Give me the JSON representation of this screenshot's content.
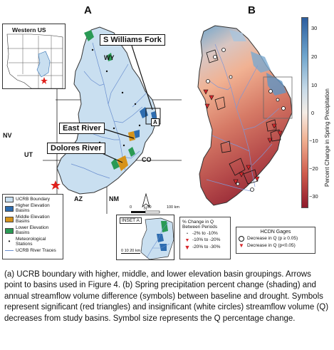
{
  "panel_a": {
    "letter": "A",
    "inset_title": "Western US",
    "callouts": {
      "williams": "S Williams Fork",
      "east": "East River",
      "dolores": "Dolores River",
      "box_label": "A"
    },
    "states": {
      "wy": "WY",
      "ut": "UT",
      "co": "CO",
      "nv": "NV",
      "az": "AZ",
      "nm": "NM"
    },
    "scale": {
      "ticks": [
        "0",
        "50",
        "100 km"
      ]
    },
    "north": "N",
    "legend": [
      {
        "label": "UCRB Boundary",
        "color": "#c9dff0"
      },
      {
        "label": "Higher Elevation Basins",
        "color": "#2e6db0"
      },
      {
        "label": "Middle Elevation Basins",
        "color": "#d6931a"
      },
      {
        "label": "Lower Elevation Basins",
        "color": "#2a9a55"
      },
      {
        "label": "Meteorological Stations",
        "color": "#111111"
      },
      {
        "label": "UCRB River Traces",
        "color": "#6a8fcf"
      }
    ],
    "inset_a": {
      "title": "INSET A",
      "scale": "0 10 20 km"
    }
  },
  "panel_b": {
    "letter": "B",
    "colorbar": {
      "label": "Percent Change in Spring Precipitation",
      "ticks": [
        "30",
        "20",
        "10",
        "0",
        "−10",
        "−20",
        "−30"
      ],
      "colors": [
        "#2c5d9e",
        "#6fa5cc",
        "#c9dbe8",
        "#f5ede6",
        "#f1b293",
        "#cf5d4e",
        "#8e1a2b"
      ]
    },
    "q_legend": {
      "title": "% Change in Q Between Periods",
      "items": [
        "-2% to -10%",
        "-10% to -20%",
        "-20% to -30%"
      ]
    },
    "hcdn_legend": {
      "title": "HCDN Gages",
      "items": [
        "Decrease in Q (p ≥ 0.05)",
        "Decrease in Q (p<0.05)"
      ]
    }
  },
  "caption": "(a) UCRB boundary with higher, middle, and lower elevation basin groupings. Arrows point to basins used in Figure 4. (b) Spring precipitation percent change (shading) and annual streamflow volume difference (symbols) between baseline and drought. Symbols represent significant (red triangles) and insignificant (white circles) streamflow volume (Q) decreases from study basins. Symbol size represents the Q percentage change."
}
